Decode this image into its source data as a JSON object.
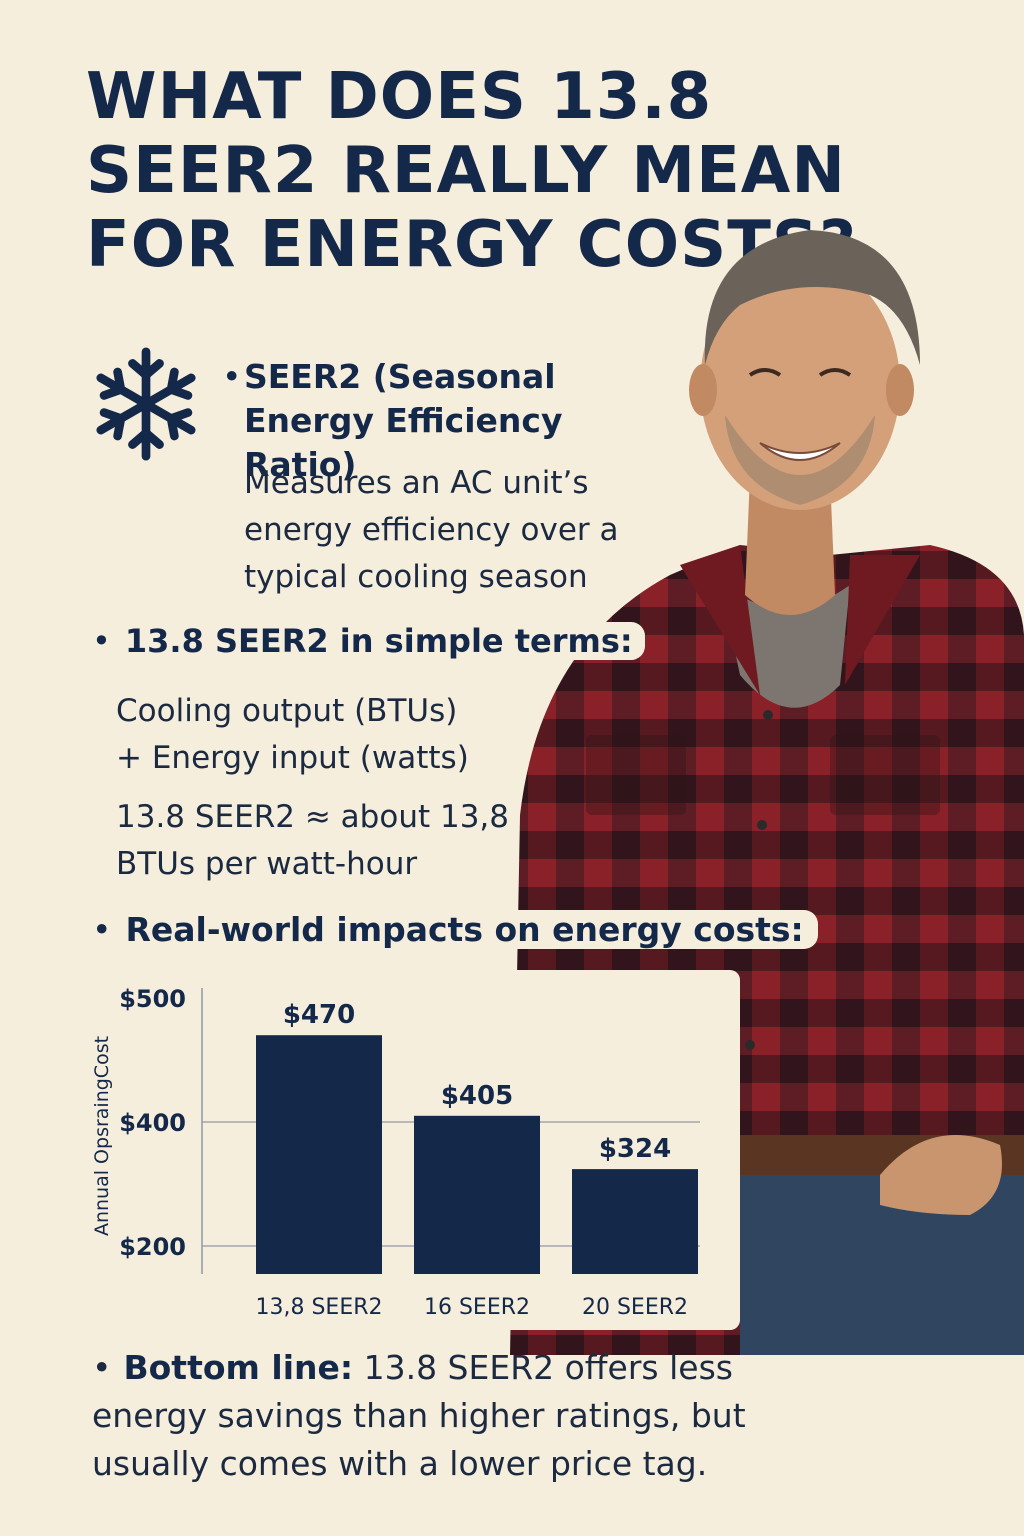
{
  "title": "WHAT DOES 13.8 SEER2 REALLY MEAN FOR ENERGY COSTS?",
  "icons": {
    "snowflake": "snowflake-icon",
    "person": "smiling-man-flannel-shirt"
  },
  "colors": {
    "navy": "#14284a",
    "background": "#f6eedd",
    "bar": "#14284a",
    "flannel_red": "#7a1f24"
  },
  "sections": {
    "seer_definition": {
      "heading": "SEER2 (Seasonal Energy Efficiency Ratio)",
      "body": "Measures an AC unit’s energy efficiency over a typical cooling season"
    },
    "simple_terms": {
      "heading": "13.8 SEER2 in simple terms:",
      "line1": "Cooling output (BTUs)",
      "line2": "+ Energy input (watts)",
      "line3": "13.8 SEER2 ≈ about 13,8",
      "line4": "BTUs per watt-hour"
    },
    "impacts": {
      "heading": "Real-world impacts on energy costs:"
    },
    "bottom_line": {
      "label": "Bottom line:",
      "text": " 13.8 SEER2 offers less energy savings than higher ratings, but usually comes with a lower price tag."
    }
  },
  "chart_data": {
    "type": "bar",
    "ylabel": "Annual OpsraingCost",
    "categories": [
      "13,8 SEER2",
      "16 SEER2",
      "20 SEER2"
    ],
    "values": [
      470,
      405,
      324
    ],
    "value_labels": [
      "$470",
      "$405",
      "$324"
    ],
    "yticks": [
      500,
      400,
      200
    ],
    "ytick_labels": [
      "$500",
      "$400",
      "$200"
    ],
    "grid": "horizontal"
  }
}
